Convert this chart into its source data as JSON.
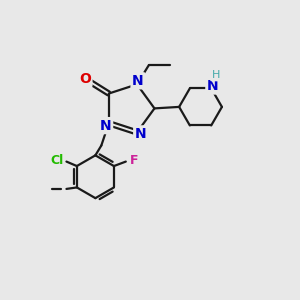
{
  "bg_color": "#e8e8e8",
  "bond_color": "#1a1a1a",
  "N_color": "#0000cc",
  "O_color": "#dd0000",
  "Cl_color": "#22bb00",
  "F_color": "#cc2299",
  "H_color": "#44aaaa",
  "line_width": 1.6,
  "fig_size": [
    3.0,
    3.0
  ],
  "dpi": 100,
  "xlim": [
    0,
    10
  ],
  "ylim": [
    0,
    10
  ]
}
